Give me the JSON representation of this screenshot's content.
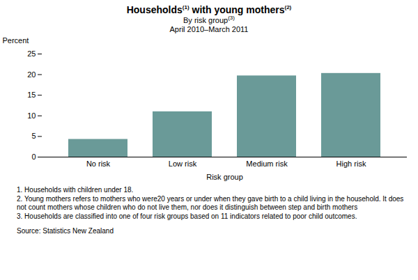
{
  "chart_data": {
    "type": "bar",
    "title": "Households(1) with young mothers(2)",
    "subtitle": [
      "By risk group(3)",
      "April 2010–March 2011"
    ],
    "xlabel": "Risk group",
    "ylabel": "Percent",
    "categories": [
      "No risk",
      "Low risk",
      "Medium risk",
      "High risk"
    ],
    "values": [
      4.3,
      11.0,
      19.7,
      20.3
    ],
    "color": "#6a9a98",
    "ylim": [
      0,
      25
    ],
    "yticks": [
      0,
      5,
      10,
      15,
      20,
      25
    ],
    "grid": false,
    "notes": [
      "1. Households with children under 18.",
      "2. Young mothers refers to mothers who were20 years or under when they gave birth to a child living in the household.  It does not count mothers whose  children who do not live them, nor does it distinguish between step and birth mothers",
      "3. Households are classified into one of four risk groups based on 11 indicators related to poor child outcomes."
    ],
    "source": "Source: Statistics New Zealand"
  }
}
